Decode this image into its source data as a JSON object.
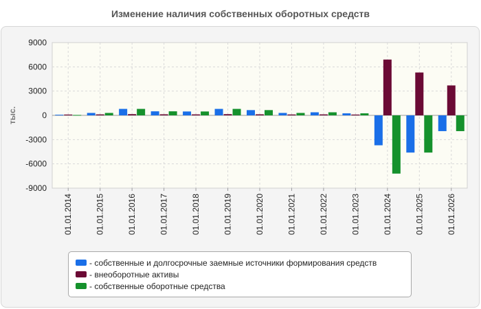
{
  "chart_data": {
    "type": "bar",
    "title": "Изменение наличия собственных оборотных средств",
    "ylabel": "тыс.",
    "xlabel": "",
    "ylim": [
      -9000,
      9000
    ],
    "yticks": [
      9000,
      6000,
      3000,
      0,
      -3000,
      -6000,
      -9000
    ],
    "categories": [
      "01.01.2014",
      "01.01.2015",
      "01.01.2016",
      "01.01.2017",
      "01.01.2018",
      "01.01.2019",
      "01.01.2020",
      "01.01.2021",
      "01.01.2022",
      "01.01.2023",
      "01.01.2024",
      "01.01.2025",
      "01.01.2026"
    ],
    "series": [
      {
        "name": "- собственные и долгосрочные заемные источники формирования средств",
        "color": "#1a6fe8",
        "values": [
          80,
          300,
          800,
          500,
          480,
          800,
          650,
          300,
          380,
          250,
          -3700,
          -4600,
          -1950
        ]
      },
      {
        "name": "- внеоборотные активы",
        "color": "#6b0a35",
        "values": [
          100,
          120,
          150,
          130,
          120,
          150,
          130,
          110,
          120,
          100,
          6900,
          5300,
          3700
        ]
      },
      {
        "name": "- собственные оборотные средства",
        "color": "#15912c",
        "values": [
          50,
          300,
          800,
          500,
          480,
          800,
          650,
          300,
          380,
          250,
          -7200,
          -4600,
          -1950
        ]
      }
    ],
    "grid": true,
    "legend_position": "bottom"
  }
}
